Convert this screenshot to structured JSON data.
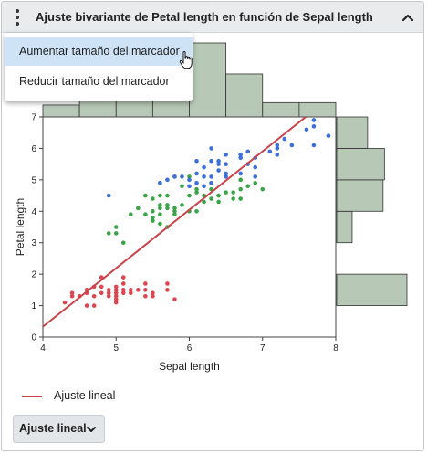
{
  "header": {
    "title": "Ajuste bivariante de Petal length en función de Sepal length"
  },
  "menu": {
    "items": [
      {
        "label": "Aumentar tamaño del marcador",
        "hovered": true
      },
      {
        "label": "Reducir tamaño del marcador",
        "hovered": false
      }
    ]
  },
  "legend": {
    "label": "Ajuste lineal",
    "color": "#c8444a"
  },
  "fit_button": {
    "label": "Ajuste lineal"
  },
  "colors": {
    "setosa": "#e0444e",
    "versicolor": "#3aa548",
    "virginica": "#3d6fd6",
    "histogram_fill": "#b7c8b6",
    "histogram_stroke": "#333333",
    "header_bg": "#e9ebed"
  },
  "icons": {
    "menu": "vertical-dots-icon",
    "collapse": "chevron-up-icon",
    "dropdown": "chevron-down-icon",
    "cursor": "hand-pointer-icon"
  },
  "chart_data": {
    "type": "scatter",
    "xlabel": "Sepal length",
    "ylabel": "Petal length",
    "xlim": [
      4,
      8
    ],
    "ylim": [
      0,
      7
    ],
    "xticks": [
      "4",
      "5",
      "6",
      "7",
      "8"
    ],
    "yticks": [
      "0",
      "1",
      "2",
      "3",
      "4",
      "5",
      "6",
      "7"
    ],
    "fit_line": {
      "intercept": -7.101,
      "slope": 1.858
    },
    "series": [
      {
        "key": "setosa",
        "points": [
          [
            4.3,
            1.1
          ],
          [
            4.4,
            1.3
          ],
          [
            4.4,
            1.4
          ],
          [
            4.5,
            1.3
          ],
          [
            4.6,
            1.0
          ],
          [
            4.6,
            1.4
          ],
          [
            4.6,
            1.5
          ],
          [
            4.7,
            1.3
          ],
          [
            4.7,
            1.6
          ],
          [
            4.8,
            1.4
          ],
          [
            4.8,
            1.6
          ],
          [
            4.8,
            1.9
          ],
          [
            4.9,
            1.4
          ],
          [
            4.9,
            1.5
          ],
          [
            5.0,
            1.2
          ],
          [
            5.0,
            1.3
          ],
          [
            5.0,
            1.4
          ],
          [
            5.0,
            1.5
          ],
          [
            5.0,
            1.6
          ],
          [
            5.1,
            1.4
          ],
          [
            5.1,
            1.5
          ],
          [
            5.1,
            1.7
          ],
          [
            5.1,
            1.9
          ],
          [
            5.2,
            1.4
          ],
          [
            5.2,
            1.5
          ],
          [
            5.3,
            1.5
          ],
          [
            5.4,
            1.3
          ],
          [
            5.4,
            1.5
          ],
          [
            5.4,
            1.7
          ],
          [
            5.5,
            1.3
          ],
          [
            5.5,
            1.4
          ],
          [
            5.7,
            1.5
          ],
          [
            5.7,
            1.7
          ],
          [
            5.8,
            1.2
          ],
          [
            4.7,
            1.0
          ],
          [
            4.9,
            1.3
          ],
          [
            5.0,
            1.1
          ]
        ]
      },
      {
        "key": "versicolor",
        "points": [
          [
            4.9,
            3.3
          ],
          [
            5.0,
            3.3
          ],
          [
            5.0,
            3.5
          ],
          [
            5.1,
            3.0
          ],
          [
            5.2,
            3.9
          ],
          [
            5.4,
            4.5
          ],
          [
            5.5,
            3.7
          ],
          [
            5.5,
            3.8
          ],
          [
            5.5,
            4.0
          ],
          [
            5.5,
            4.4
          ],
          [
            5.6,
            3.6
          ],
          [
            5.6,
            3.9
          ],
          [
            5.6,
            4.1
          ],
          [
            5.6,
            4.2
          ],
          [
            5.6,
            4.5
          ],
          [
            5.7,
            3.5
          ],
          [
            5.7,
            4.1
          ],
          [
            5.7,
            4.2
          ],
          [
            5.7,
            4.5
          ],
          [
            5.8,
            3.9
          ],
          [
            5.8,
            4.0
          ],
          [
            5.8,
            4.1
          ],
          [
            5.9,
            4.2
          ],
          [
            5.9,
            4.8
          ],
          [
            6.0,
            4.0
          ],
          [
            6.0,
            4.5
          ],
          [
            6.0,
            5.1
          ],
          [
            6.1,
            4.0
          ],
          [
            6.1,
            4.6
          ],
          [
            6.1,
            4.7
          ],
          [
            6.2,
            4.3
          ],
          [
            6.2,
            4.5
          ],
          [
            6.3,
            4.4
          ],
          [
            6.3,
            4.7
          ],
          [
            6.3,
            4.9
          ],
          [
            6.4,
            4.3
          ],
          [
            6.4,
            4.5
          ],
          [
            6.5,
            4.6
          ],
          [
            6.6,
            4.4
          ],
          [
            6.6,
            4.6
          ],
          [
            6.7,
            4.4
          ],
          [
            6.7,
            4.7
          ],
          [
            6.7,
            5.0
          ],
          [
            6.8,
            4.8
          ],
          [
            6.9,
            4.9
          ],
          [
            7.0,
            4.7
          ],
          [
            5.3,
            4.1
          ],
          [
            5.4,
            3.9
          ]
        ]
      },
      {
        "key": "virginica",
        "points": [
          [
            4.9,
            4.5
          ],
          [
            5.6,
            4.9
          ],
          [
            5.7,
            5.0
          ],
          [
            5.8,
            5.1
          ],
          [
            5.8,
            5.1
          ],
          [
            6.0,
            4.8
          ],
          [
            6.0,
            5.0
          ],
          [
            6.1,
            4.9
          ],
          [
            6.1,
            5.6
          ],
          [
            6.2,
            4.8
          ],
          [
            6.2,
            5.4
          ],
          [
            6.3,
            4.9
          ],
          [
            6.3,
            5.1
          ],
          [
            6.3,
            5.6
          ],
          [
            6.3,
            6.0
          ],
          [
            6.4,
            5.3
          ],
          [
            6.4,
            5.5
          ],
          [
            6.4,
            5.6
          ],
          [
            6.5,
            5.1
          ],
          [
            6.5,
            5.2
          ],
          [
            6.5,
            5.5
          ],
          [
            6.5,
            5.8
          ],
          [
            6.7,
            5.2
          ],
          [
            6.7,
            5.7
          ],
          [
            6.7,
            5.8
          ],
          [
            6.8,
            5.5
          ],
          [
            6.8,
            5.9
          ],
          [
            6.9,
            5.1
          ],
          [
            6.9,
            5.4
          ],
          [
            6.9,
            5.7
          ],
          [
            7.1,
            5.9
          ],
          [
            7.2,
            5.8
          ],
          [
            7.2,
            6.0
          ],
          [
            7.2,
            6.1
          ],
          [
            7.3,
            6.3
          ],
          [
            7.4,
            6.1
          ],
          [
            7.6,
            6.6
          ],
          [
            7.7,
            6.1
          ],
          [
            7.7,
            6.7
          ],
          [
            7.7,
            6.9
          ],
          [
            7.9,
            6.4
          ],
          [
            5.9,
            5.1
          ],
          [
            6.1,
            5.2
          ],
          [
            5.6,
            4.9
          ],
          [
            6.2,
            5.1
          ]
        ]
      }
    ],
    "x_histogram": {
      "bin_edges": [
        4.0,
        4.5,
        5.0,
        5.5,
        6.0,
        6.5,
        7.0,
        7.5,
        8.0
      ],
      "counts": [
        5,
        27,
        27,
        30,
        31,
        18,
        6,
        6
      ]
    },
    "y_histogram": {
      "bin_edges": [
        1.0,
        2.0,
        3.0,
        4.0,
        5.0,
        6.0,
        7.0
      ],
      "counts": [
        50,
        0,
        11,
        33,
        34,
        22
      ]
    }
  }
}
